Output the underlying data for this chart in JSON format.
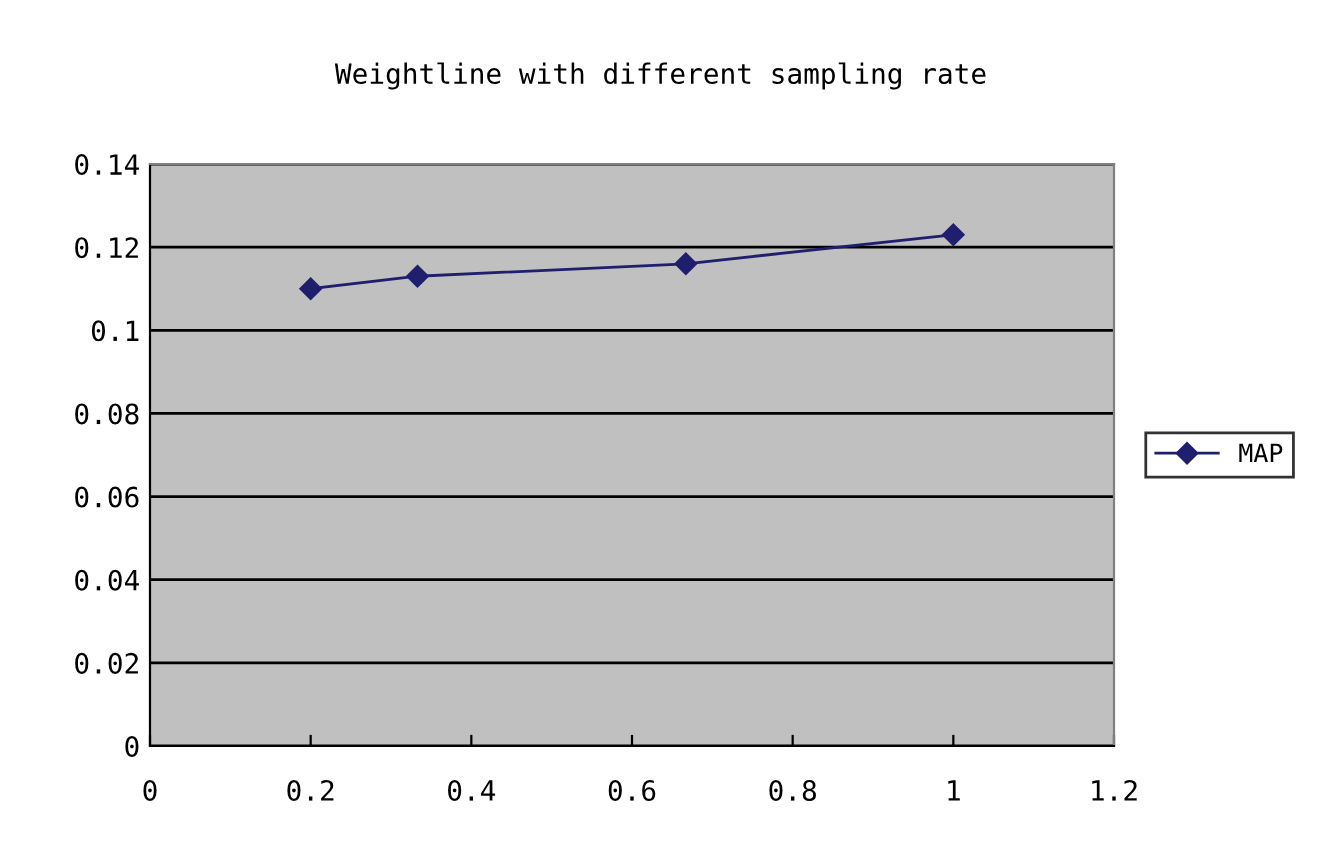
{
  "chart_data": {
    "type": "line",
    "title": "Weightline with different sampling rate",
    "x": [
      0.2,
      0.333,
      0.667,
      1.0
    ],
    "series": [
      {
        "name": "MAP",
        "color": "#1f1f6e",
        "values": [
          0.11,
          0.113,
          0.116,
          0.123
        ]
      }
    ],
    "xlim": [
      0,
      1.2
    ],
    "xticks": [
      0,
      0.2,
      0.4,
      0.6,
      0.8,
      1,
      1.2
    ],
    "ylim": [
      0,
      0.14
    ],
    "yticks": [
      0,
      0.02,
      0.04,
      0.06,
      0.08,
      0.1,
      0.12,
      0.14
    ],
    "grid": "y",
    "legend": "right",
    "marker": "diamond",
    "line_style": "solid"
  }
}
